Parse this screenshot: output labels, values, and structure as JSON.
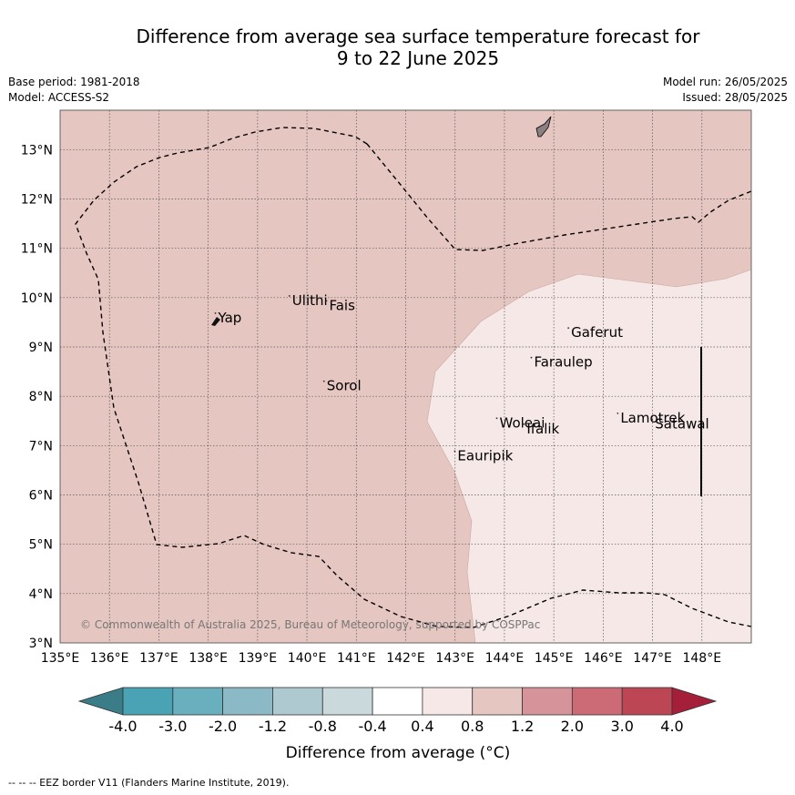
{
  "title": {
    "line1": "Difference from average sea surface temperature forecast for",
    "line2": "9 to 22 June 2025"
  },
  "meta": {
    "base_period": "Base period: 1981-2018",
    "model": "Model: ACCESS-S2",
    "model_run": "Model run: 26/05/2025",
    "issued": "Issued: 28/05/2025"
  },
  "map": {
    "lon_range": [
      135,
      149
    ],
    "lat_range": [
      3,
      13.8
    ],
    "lon_ticks": [
      "135°E",
      "136°E",
      "137°E",
      "138°E",
      "139°E",
      "140°E",
      "141°E",
      "142°E",
      "143°E",
      "144°E",
      "145°E",
      "146°E",
      "147°E",
      "148°E"
    ],
    "lat_ticks": [
      "3°N",
      "4°N",
      "5°N",
      "6°N",
      "7°N",
      "8°N",
      "9°N",
      "10°N",
      "11°N",
      "12°N",
      "13°N"
    ],
    "colors": {
      "band_0_8_1_2": "#e6c6c1",
      "band_0_4_0_8": "#f5e8e6",
      "land": "#8a8080",
      "grid": "#555555"
    },
    "places": [
      {
        "name": "Ulithi",
        "lon": 139.7,
        "lat": 9.85
      },
      {
        "name": "Fais",
        "lon": 140.45,
        "lat": 9.75
      },
      {
        "name": "Yap",
        "lon": 138.2,
        "lat": 9.5
      },
      {
        "name": "Gaferut",
        "lon": 145.35,
        "lat": 9.2
      },
      {
        "name": "Faraulep",
        "lon": 144.6,
        "lat": 8.6
      },
      {
        "name": "Sorol",
        "lon": 140.4,
        "lat": 8.12
      },
      {
        "name": "Woleai",
        "lon": 143.9,
        "lat": 7.37
      },
      {
        "name": "Ifalik",
        "lon": 144.45,
        "lat": 7.25
      },
      {
        "name": "Lamotrek",
        "lon": 146.35,
        "lat": 7.47
      },
      {
        "name": "Satawal",
        "lon": 147.05,
        "lat": 7.35
      },
      {
        "name": "Eauripik",
        "lon": 143.05,
        "lat": 6.7
      }
    ],
    "copyright": "© Commonwealth of Australia 2025, Bureau of Meteorology, supported by COSPPac"
  },
  "colorbar": {
    "labels": [
      "-4.0",
      "-3.0",
      "-2.0",
      "-1.2",
      "-0.8",
      "-0.4",
      "0.4",
      "0.8",
      "1.2",
      "2.0",
      "3.0",
      "4.0"
    ],
    "colors": [
      "#3a7c88",
      "#4aa3b4",
      "#6aafbd",
      "#8bbac6",
      "#aec9d0",
      "#cad9dc",
      "#ffffff",
      "#f5e8e6",
      "#e6c6c1",
      "#d7939a",
      "#cc6b75",
      "#bd4655",
      "#a51e3a"
    ],
    "label": "Difference from average (°C)"
  },
  "footnote": "--  --  -- EEZ border V11 (Flanders Marine Institute, 2019)."
}
